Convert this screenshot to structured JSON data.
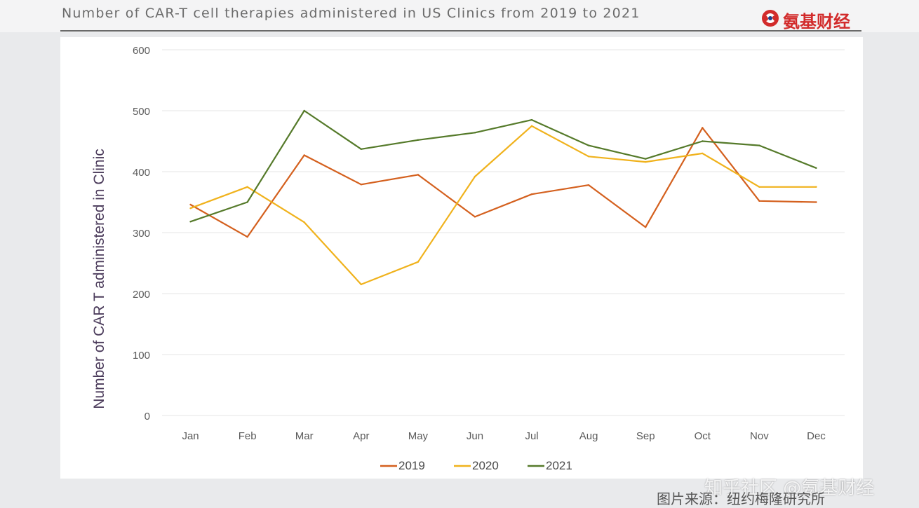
{
  "header": {
    "title": "Number of CAR-T cell therapies administered in US Clinics from 2019 to 2021",
    "brand_name": "氨基财经",
    "brand_icon": "brand-logo-icon",
    "brand_color": "#d22b2b"
  },
  "footer": {
    "watermark": "知乎社区 @氨基财经",
    "source": "图片来源：纽约梅隆研究所"
  },
  "chart_data": {
    "type": "line",
    "title": "",
    "xlabel": "",
    "ylabel": "Number of CAR T administered in Clinic",
    "categories": [
      "Jan",
      "Feb",
      "Mar",
      "Apr",
      "May",
      "Jun",
      "Jul",
      "Aug",
      "Sep",
      "Oct",
      "Nov",
      "Dec"
    ],
    "ylim": [
      0,
      600
    ],
    "yticks": [
      0,
      100,
      200,
      300,
      400,
      500,
      600
    ],
    "grid": true,
    "legend_position": "bottom",
    "series": [
      {
        "name": "2019",
        "color": "#d4601e",
        "values": [
          346,
          293,
          427,
          379,
          395,
          326,
          363,
          378,
          309,
          472,
          352,
          350
        ]
      },
      {
        "name": "2020",
        "color": "#f0b21c",
        "values": [
          340,
          375,
          317,
          215,
          252,
          392,
          475,
          425,
          416,
          430,
          375,
          375
        ]
      },
      {
        "name": "2021",
        "color": "#557a2a",
        "values": [
          318,
          350,
          500,
          437,
          452,
          464,
          485,
          443,
          421,
          450,
          443,
          406
        ]
      }
    ]
  }
}
